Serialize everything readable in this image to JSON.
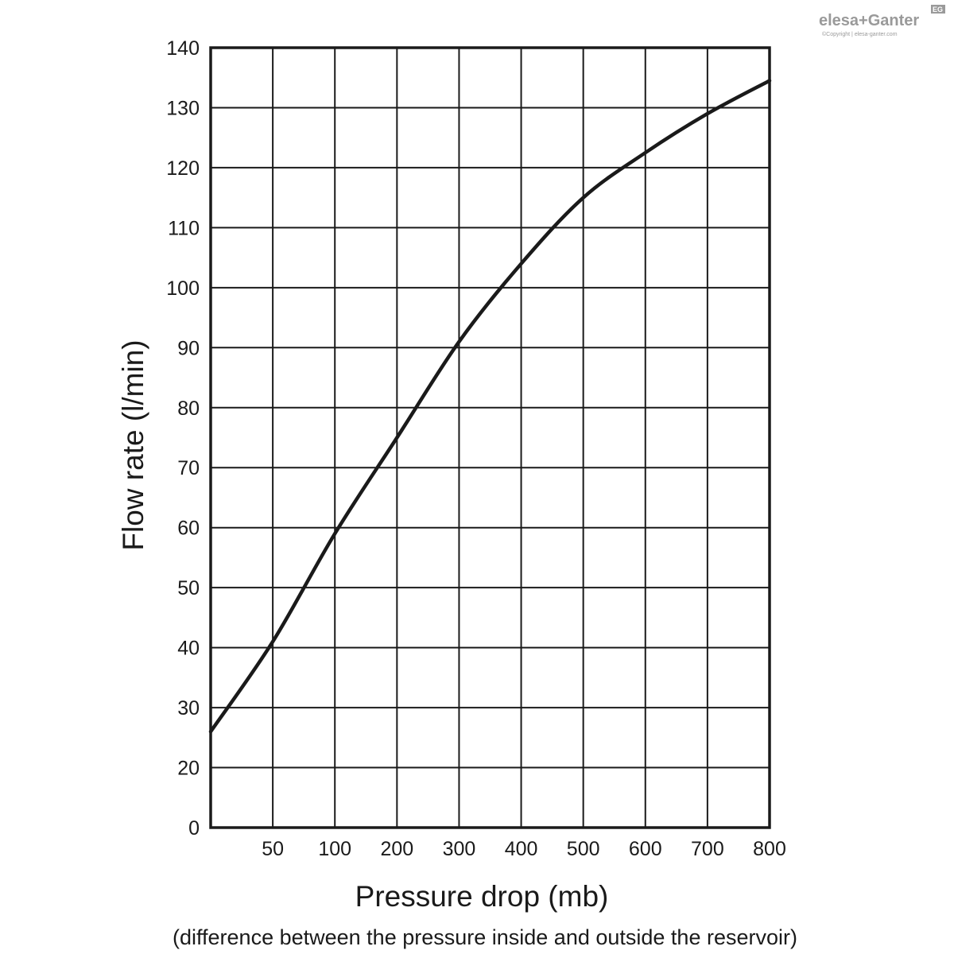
{
  "brand": {
    "name": "elesa+Ganter",
    "badge": "EG",
    "copyright": "©Copyright | elesa-ganter.com"
  },
  "chart_data": {
    "type": "line",
    "title": "",
    "xlabel": "Pressure drop (mb)",
    "xlabel_note": "(difference between the pressure inside and outside the reservoir)",
    "ylabel": "Flow rate (l/min)",
    "x_ticks": [
      "50",
      "100",
      "200",
      "300",
      "400",
      "500",
      "600",
      "700",
      "800"
    ],
    "y_ticks": [
      "0",
      "20",
      "30",
      "40",
      "50",
      "60",
      "70",
      "80",
      "90",
      "100",
      "110",
      "120",
      "130",
      "140"
    ],
    "grid": true,
    "series": [
      {
        "x": [
          0,
          50,
          100,
          200,
          300,
          400,
          500,
          600,
          700,
          800
        ],
        "y": [
          26,
          41,
          59,
          75,
          91,
          104,
          115,
          122.5,
          129,
          134.5
        ]
      }
    ],
    "colors": {
      "line": "#1a1a1a",
      "grid": "#1a1a1a",
      "logo": "#9a9a9a"
    }
  }
}
